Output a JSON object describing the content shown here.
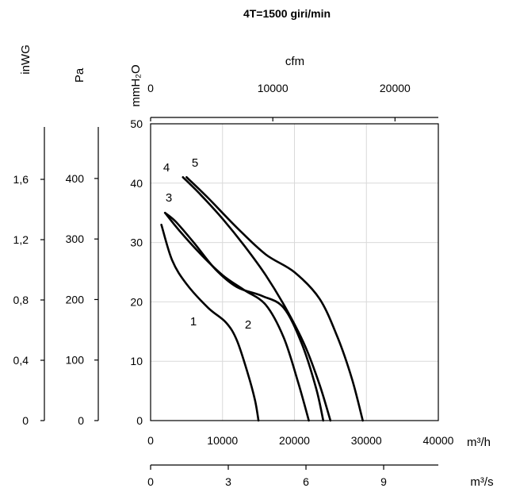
{
  "chart_data": {
    "type": "line",
    "title": "4T=1500 giri/min",
    "xlabel": "m³/h",
    "ylabel": "mmH₂O",
    "xlim": [
      0,
      40000
    ],
    "ylim": [
      0,
      50
    ],
    "x_ticks": [
      "0",
      "10000",
      "20000",
      "30000",
      "40000"
    ],
    "y_ticks": [
      "0",
      "10",
      "20",
      "30",
      "40",
      "50"
    ],
    "grid": true,
    "secondary_axes": {
      "top_cfm": {
        "label": "cfm",
        "ticks": [
          "0",
          "10000",
          "20000"
        ],
        "values": [
          0,
          10000,
          20000
        ]
      },
      "bottom_m3s": {
        "label": "m³/s",
        "ticks": [
          "0",
          "3",
          "6",
          "9"
        ],
        "values": [
          0,
          3,
          6,
          9
        ]
      },
      "left_pa": {
        "label": "Pa",
        "ticks": [
          "0",
          "100",
          "200",
          "300",
          "400"
        ],
        "values": [
          0,
          100,
          200,
          300,
          400
        ]
      },
      "left_inwg": {
        "label": "inWG",
        "ticks": [
          "0",
          "0,4",
          "0,8",
          "1,2",
          "1,6"
        ],
        "values": [
          0,
          0.4,
          0.8,
          1.2,
          1.6
        ]
      }
    },
    "series": [
      {
        "name": "1",
        "x": [
          1500,
          3000,
          5000,
          8000,
          10500,
          12000,
          13500,
          14500,
          15000
        ],
        "y": [
          33,
          27,
          23,
          19,
          16.5,
          13.5,
          8,
          3.5,
          0
        ]
      },
      {
        "name": "2",
        "x": [
          2000,
          4000,
          7000,
          10000,
          13000,
          16000,
          18500,
          20500,
          22000
        ],
        "y": [
          35,
          32,
          28,
          24.5,
          22,
          19.5,
          14,
          6.5,
          0
        ]
      },
      {
        "name": "3",
        "x": [
          2000,
          3500,
          6000,
          9000,
          12000,
          15500,
          18500,
          21000,
          23000,
          24000
        ],
        "y": [
          35,
          33.5,
          30,
          25.5,
          22.5,
          21,
          19,
          13,
          5.5,
          0
        ]
      },
      {
        "name": "4",
        "x": [
          4500,
          7000,
          10000,
          13000,
          16000,
          19000,
          21500,
          23500,
          25000
        ],
        "y": [
          41,
          38,
          34,
          29.5,
          24.5,
          18.5,
          12.5,
          6,
          0
        ]
      },
      {
        "name": "5",
        "x": [
          5000,
          8000,
          12000,
          16000,
          20000,
          23500,
          26000,
          28000,
          29500
        ],
        "y": [
          41,
          37.5,
          32.5,
          28,
          25,
          20.5,
          14,
          7,
          0
        ]
      }
    ]
  }
}
